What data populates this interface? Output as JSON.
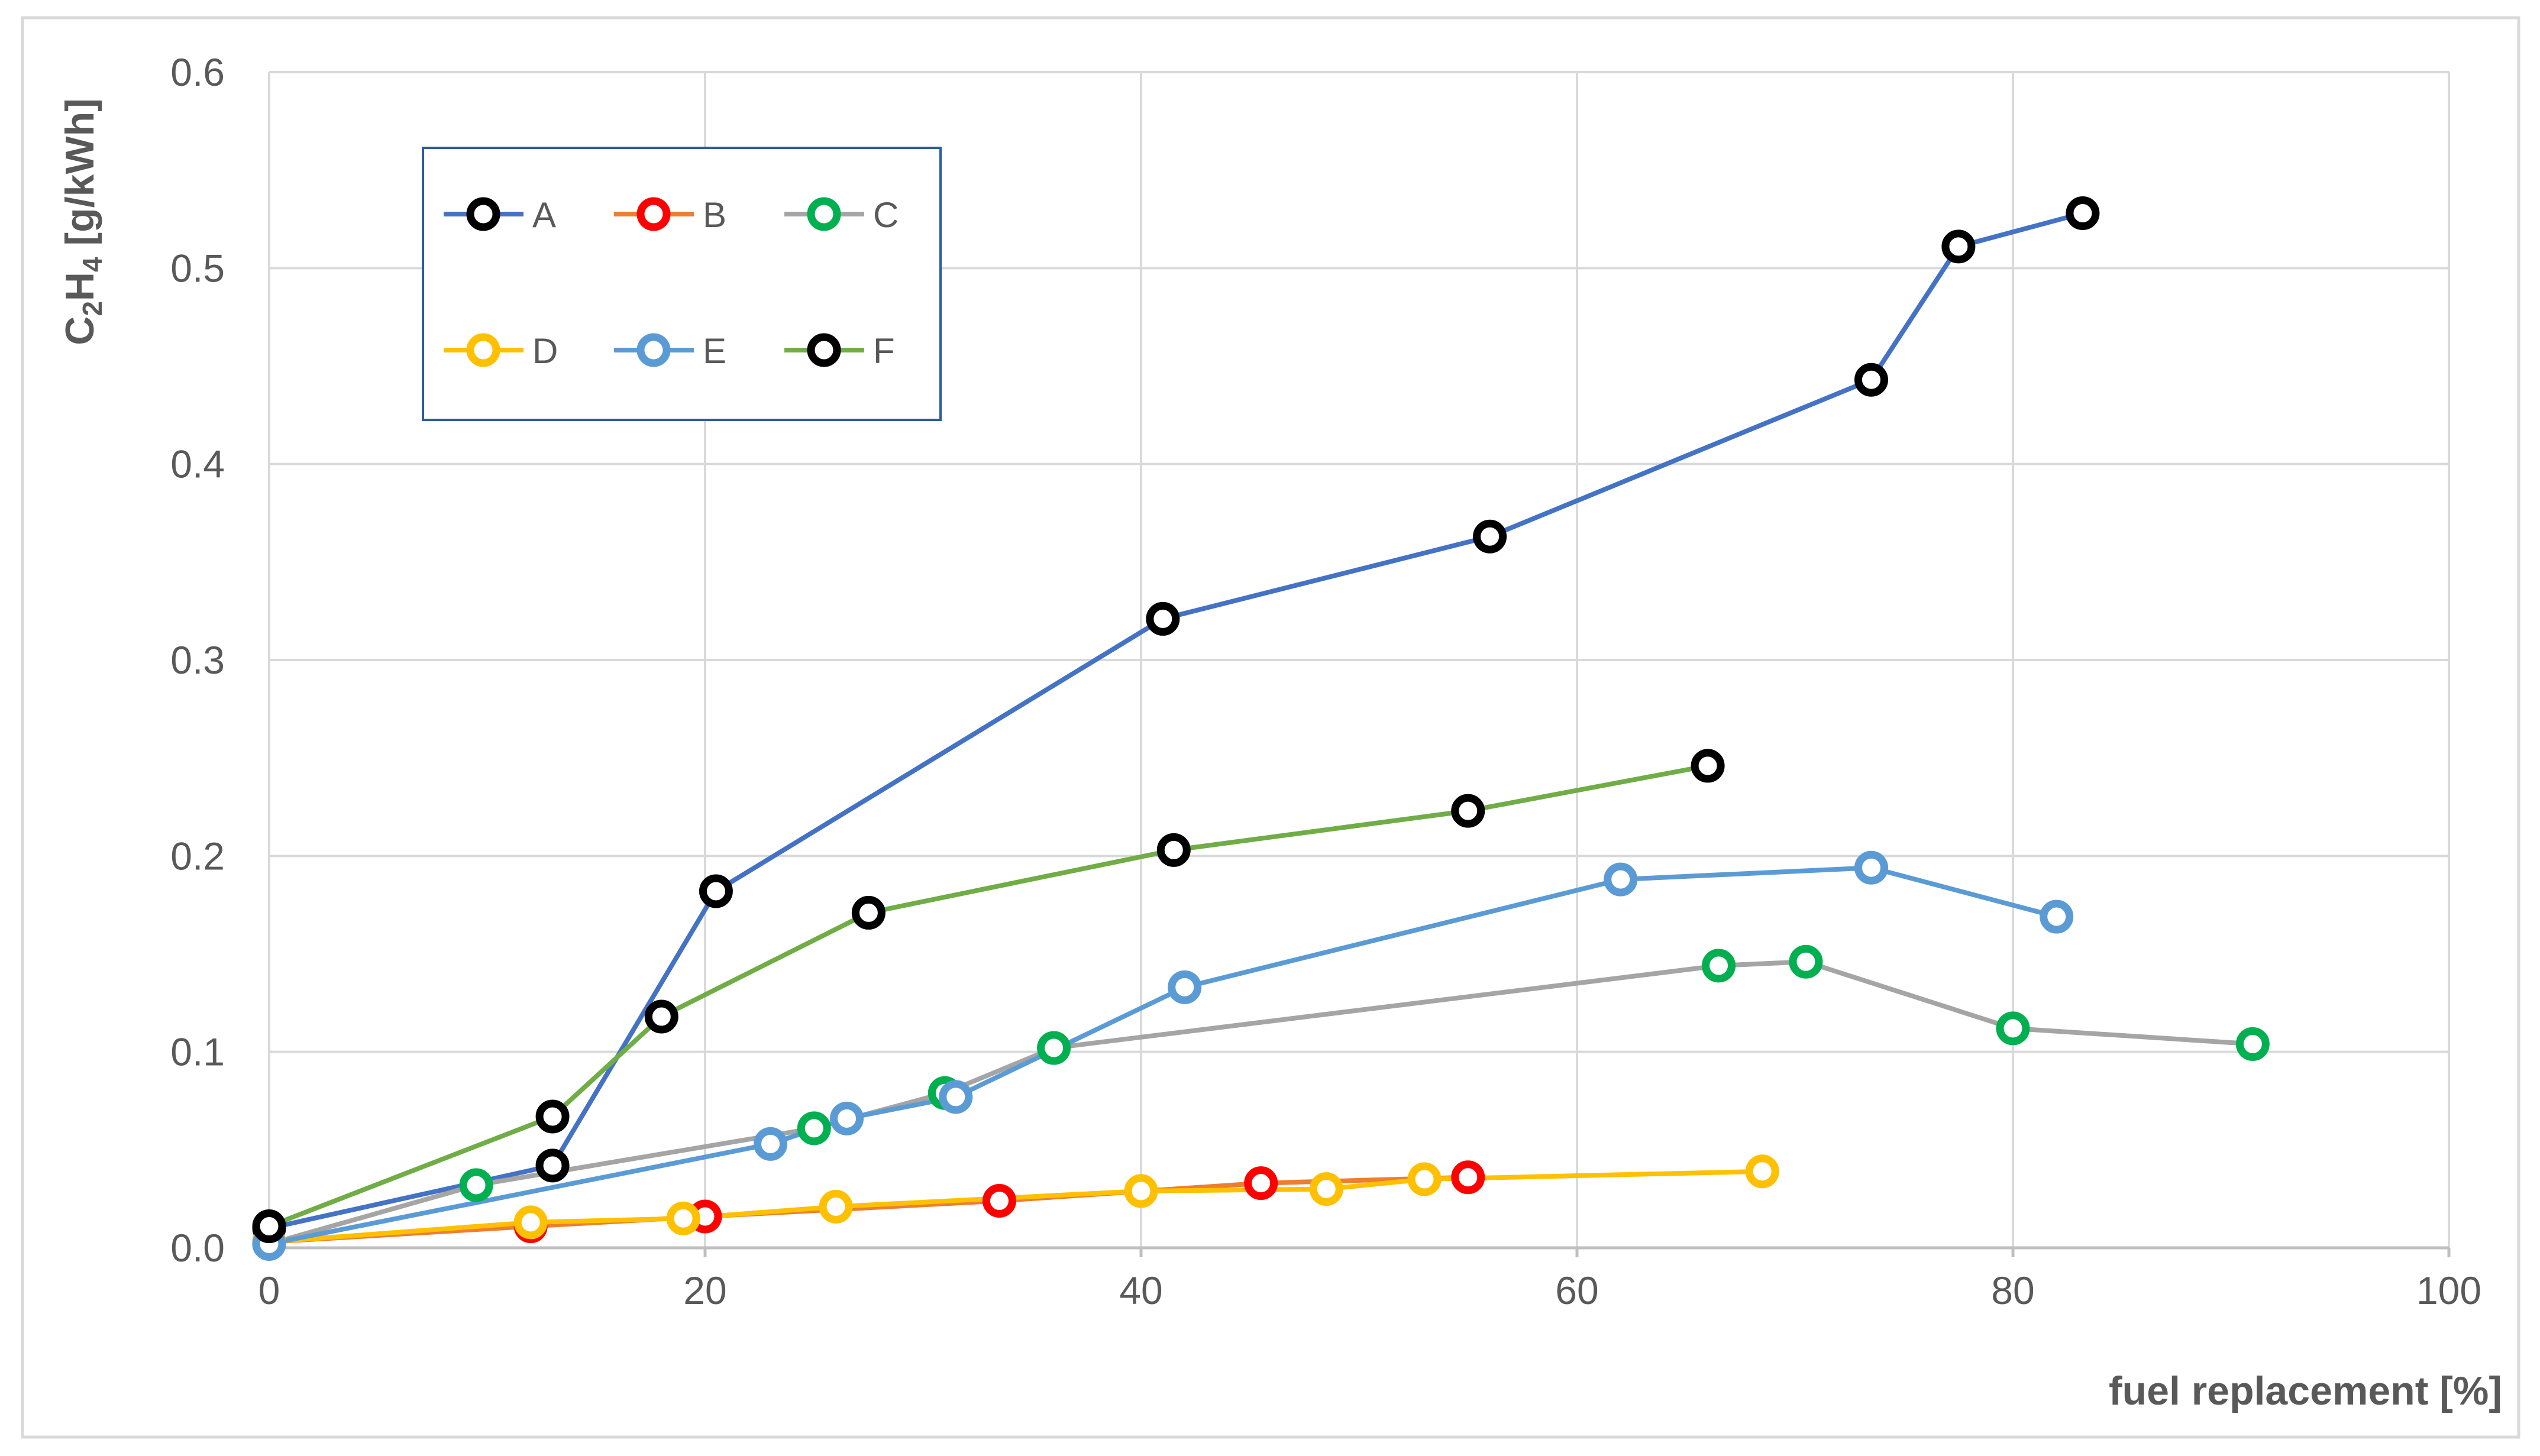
{
  "chart_data": {
    "type": "line",
    "xlabel": "fuel replacement [%]",
    "ylabel": {
      "parts": [
        {
          "t": "C"
        },
        {
          "t": "2",
          "sub": true
        },
        {
          "t": "H"
        },
        {
          "t": "4",
          "sub": true
        },
        {
          "t": " [g/kWh]"
        }
      ]
    },
    "xlim": [
      0,
      100
    ],
    "ylim": [
      0,
      0.6
    ],
    "x_ticks": [
      "0",
      "20",
      "40",
      "60",
      "80",
      "100"
    ],
    "y_ticks": [
      "0.0",
      "0.1",
      "0.2",
      "0.3",
      "0.4",
      "0.5",
      "0.6"
    ],
    "grid": true,
    "legend_position": "top-left",
    "series": [
      {
        "name": "A",
        "line_color": "#4472C4",
        "marker_color": "#000000",
        "x": [
          0,
          13,
          20.5,
          41,
          56,
          73.5,
          77.5,
          83.2
        ],
        "y": [
          0.01,
          0.042,
          0.182,
          0.321,
          0.363,
          0.443,
          0.511,
          0.528
        ]
      },
      {
        "name": "B",
        "line_color": "#ED7D31",
        "marker_color": "#FF0000",
        "x": [
          0,
          12,
          20,
          33.5,
          45.5,
          55
        ],
        "y": [
          0.003,
          0.011,
          0.016,
          0.024,
          0.033,
          0.036
        ]
      },
      {
        "name": "C",
        "line_color": "#A5A5A5",
        "marker_color": "#00B050",
        "x": [
          0,
          9.5,
          25,
          31,
          36,
          66.5,
          70.5,
          80,
          91
        ],
        "y": [
          0.002,
          0.032,
          0.061,
          0.079,
          0.102,
          0.144,
          0.146,
          0.112,
          0.104
        ]
      },
      {
        "name": "D",
        "line_color": "#FFC000",
        "marker_color": "#FFC000",
        "x": [
          0,
          12,
          19,
          26,
          40,
          48.5,
          53,
          68.5
        ],
        "y": [
          0.003,
          0.013,
          0.015,
          0.021,
          0.029,
          0.03,
          0.035,
          0.039
        ]
      },
      {
        "name": "E",
        "line_color": "#5B9BD5",
        "marker_color": "#5B9BD5",
        "x": [
          0,
          23,
          26.5,
          31.5,
          42,
          62,
          73.5,
          82
        ],
        "y": [
          0.002,
          0.053,
          0.066,
          0.077,
          0.133,
          0.188,
          0.194,
          0.169
        ]
      },
      {
        "name": "F",
        "line_color": "#70AD47",
        "marker_color": "#000000",
        "x": [
          0,
          13,
          18,
          27.5,
          41.5,
          55,
          66
        ],
        "y": [
          0.011,
          0.067,
          0.118,
          0.171,
          0.203,
          0.223,
          0.246
        ]
      }
    ]
  }
}
